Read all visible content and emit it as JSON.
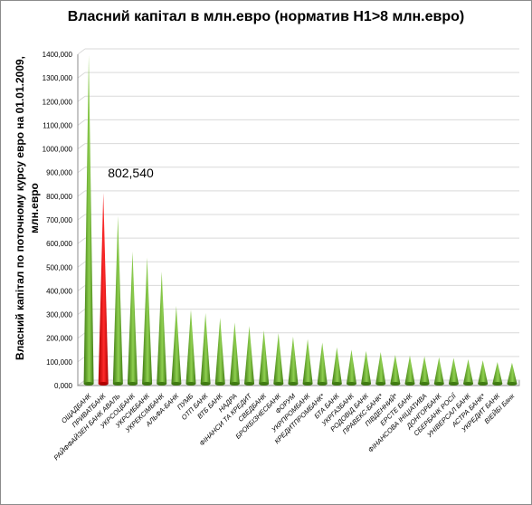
{
  "chart_data": {
    "type": "bar",
    "title": "Власний капітал в млн.евро (норматив Н1>8 млн.евро)",
    "ylabel": "Власний капітал по поточному курсу евро на 01.01.2009, млн.евро",
    "xlabel": "",
    "ylim": [
      0,
      1400000
    ],
    "yticks": [
      0,
      100000,
      200000,
      300000,
      400000,
      500000,
      600000,
      700000,
      800000,
      900000,
      1000000,
      1100000,
      1200000,
      1300000,
      1400000
    ],
    "ytick_labels": [
      "0,000",
      "100,000",
      "200,000",
      "300,000",
      "400,000",
      "500,000",
      "600,000",
      "700,000",
      "800,000",
      "900,000",
      "1000,000",
      "1100,000",
      "1200,000",
      "1300,000",
      "1400,000"
    ],
    "grid": true,
    "legend": "none",
    "categories": [
      "ОЩАДБАНК",
      "ПРИВАТБАНК",
      "РАЙФФАЙЗЕН БАНК АВАЛЬ",
      "УКРСОЦБАНК",
      "УКРСИББАНК",
      "УКРЕКСІМБАНК",
      "АЛЬФА-БАНК",
      "ПУМБ",
      "ОТП БАНК",
      "ВТБ БАНК",
      "НАДРА",
      "ФІНАНСИ ТА КРЕДИТ",
      "СВЕДБАНК",
      "БРОКБІЗНЕСБАНК",
      "ФОРУМ",
      "УКРПРОМБАНК",
      "КРЕДИТПРОМБАНК*",
      "БТА БАНК",
      "УКРГАЗБАНК",
      "РОДОВІД БАНК",
      "ПРАВЕКС-БАНК*",
      "ПІВДЕННИЙ*",
      "ЕРСТЕ БАНК",
      "ФІНАНСОВА ІНІЦІАТИВА",
      "ДОНГОРБАНК",
      "СБЕРБАНК РОСІЇ",
      "УНІВЕРСАЛ БАНК",
      "АСТРА БАНК*",
      "УКРЕДИТ БАНК",
      "ВІЕЙБІ Банк"
    ],
    "values": [
      1385000,
      802540,
      705000,
      555000,
      530000,
      470000,
      325000,
      310000,
      295000,
      275000,
      255000,
      240000,
      222000,
      210000,
      195000,
      185000,
      170000,
      150000,
      140000,
      135000,
      130000,
      118000,
      115000,
      112000,
      108000,
      105000,
      100000,
      95000,
      88000,
      85000
    ],
    "highlight_index": 1,
    "highlight_label": "802,540",
    "colors": {
      "normal": "#8fd050",
      "normal_dark": "#3f7a12",
      "highlight": "#ff2a2a",
      "highlight_dark": "#b00000",
      "grid": "#d9d9d9",
      "axis": "#8c8c8c"
    }
  }
}
